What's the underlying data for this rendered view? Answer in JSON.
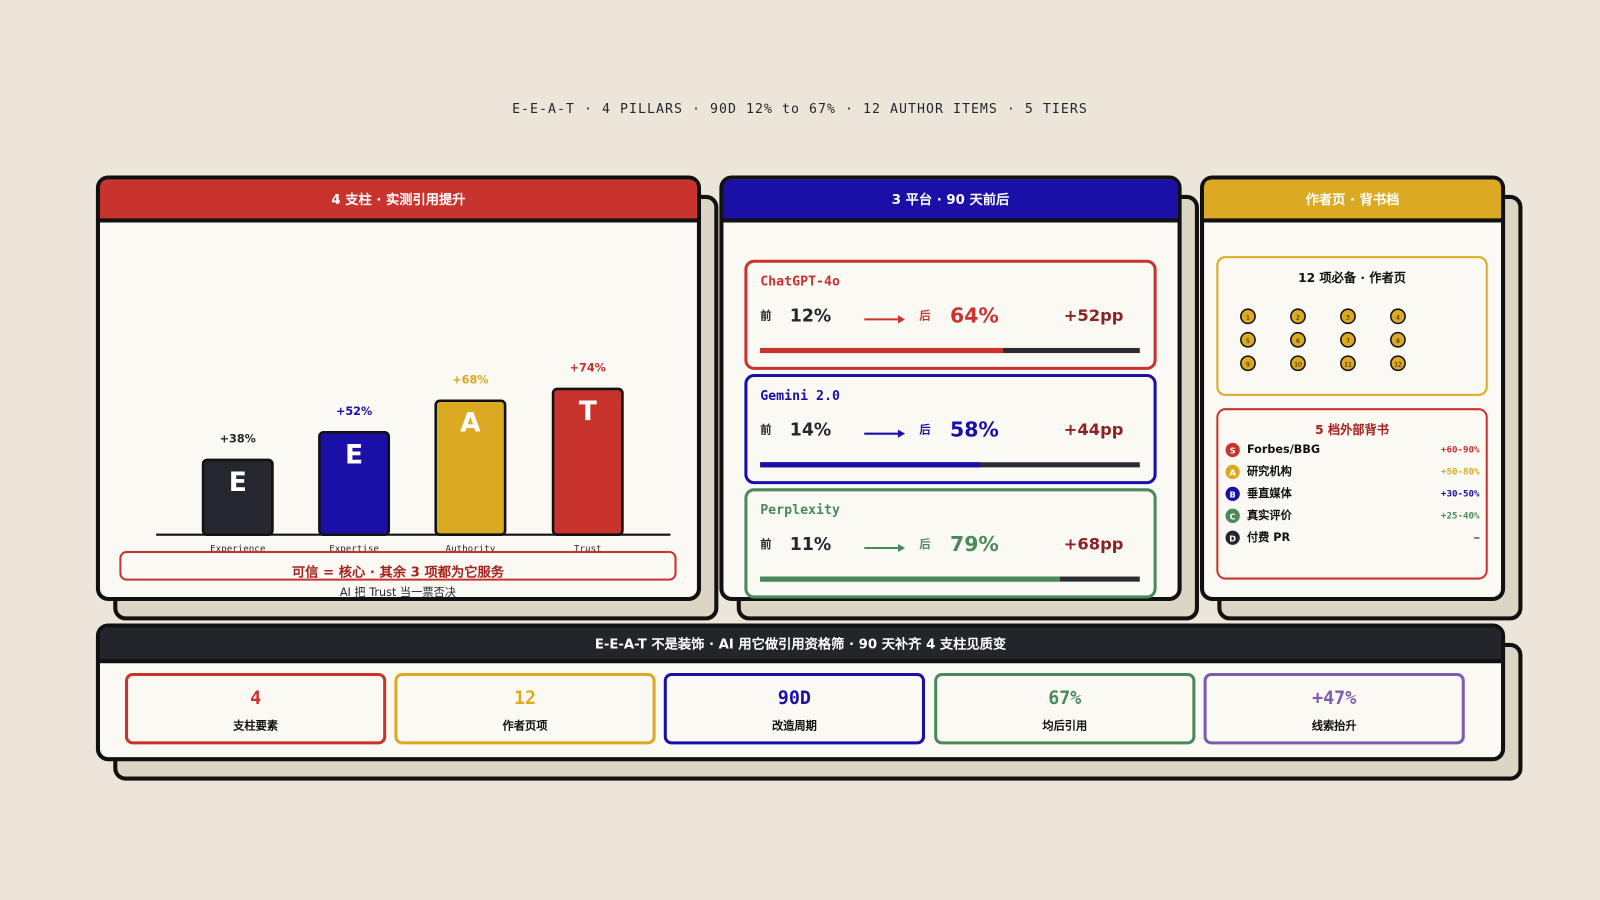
{
  "header": {
    "title": "E-E-A-T · 4 PILLARS · 90D 12% to 67% · 12 AUTHOR ITEMS · 5 TIERS"
  },
  "pillars": {
    "title": "4 支柱 · 实测引用提升",
    "categories": [
      "Experience",
      "Expertise",
      "Authority",
      "Trust"
    ],
    "letters": [
      "E",
      "E",
      "A",
      "T"
    ],
    "values": [
      38,
      52,
      68,
      74
    ],
    "value_labels": [
      "+38%",
      "+52%",
      "+68%",
      "+74%"
    ],
    "colors": [
      "#26272e",
      "#1a10a8",
      "#dba922",
      "#c8332d"
    ],
    "note": "可信 = 核心 · 其余 3 项都为它服务",
    "note2": "AI 把 Trust 当一票否决"
  },
  "platforms": {
    "title": "3 平台 · 90 天前后",
    "before_text": "前",
    "after_text": "后",
    "items": [
      {
        "name": "ChatGPT-4o",
        "color": "#c8332d",
        "values": [
          12,
          64,
          52
        ],
        "value_labels": [
          "12%",
          "64%",
          "+52pp"
        ]
      },
      {
        "name": "Gemini 2.0",
        "color": "#1a10a8",
        "values": [
          14,
          58,
          44
        ],
        "value_labels": [
          "14%",
          "58%",
          "+44pp"
        ]
      },
      {
        "name": "Perplexity",
        "color": "#4a8a5a",
        "values": [
          11,
          79,
          68
        ],
        "value_labels": [
          "11%",
          "79%",
          "+68pp"
        ]
      }
    ]
  },
  "author": {
    "title": "作者页 · 背书档",
    "checklist": {
      "title": "12 项必备 · 作者页",
      "items": [
        "1",
        "2",
        "3",
        "4",
        "5",
        "6",
        "7",
        "8",
        "9",
        "10",
        "11",
        "12"
      ]
    },
    "tiers": {
      "title": "5 档外部背书",
      "items": [
        {
          "badge": "S",
          "name": "Forbes/BBG",
          "range": "+60-90%",
          "color": "#c8332d"
        },
        {
          "badge": "A",
          "name": "研究机构",
          "range": "+50-80%",
          "color": "#dba922"
        },
        {
          "badge": "B",
          "name": "垂直媒体",
          "range": "+30-50%",
          "color": "#1a10a8"
        },
        {
          "badge": "C",
          "name": "真实评价",
          "range": "+25-40%",
          "color": "#4a8a5a"
        },
        {
          "badge": "D",
          "name": "付费 PR",
          "range": "—",
          "color": "#26272e"
        }
      ]
    }
  },
  "summary": {
    "title": "E-E-A-T 不是装饰 · AI 用它做引用资格筛 · 90 天补齐 4 支柱见质变",
    "stats": [
      {
        "value": "4",
        "label": "支柱要素",
        "color": "#c8332d"
      },
      {
        "value": "12",
        "label": "作者页项",
        "color": "#dba922"
      },
      {
        "value": "90D",
        "label": "改造周期",
        "color": "#1a10a8"
      },
      {
        "value": "67%",
        "label": "均后引用",
        "color": "#4a8a5a"
      },
      {
        "value": "+47%",
        "label": "线索抬升",
        "color": "#7c5cb0"
      }
    ]
  }
}
